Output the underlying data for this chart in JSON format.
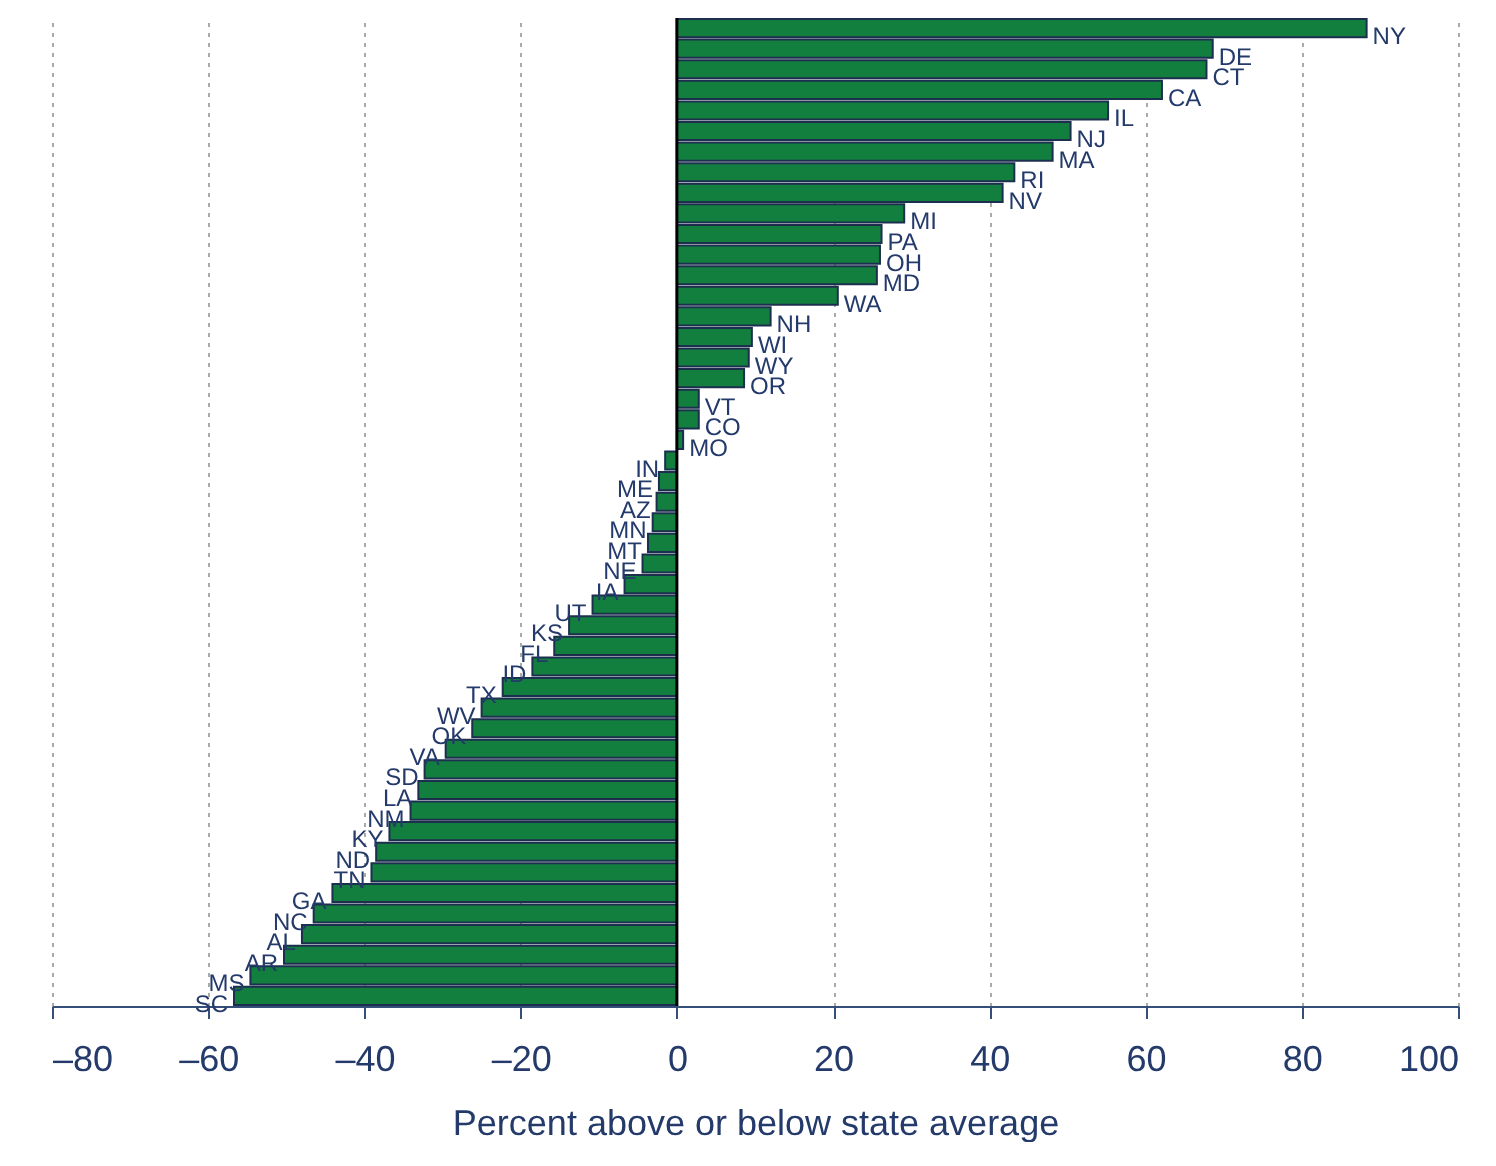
{
  "chart_data": {
    "type": "bar",
    "orientation": "horizontal",
    "xlabel": "Percent above or below state average",
    "categories": [
      "NY",
      "DE",
      "CT",
      "CA",
      "IL",
      "NJ",
      "MA",
      "RI",
      "NV",
      "MI",
      "PA",
      "OH",
      "MD",
      "WA",
      "NH",
      "WI",
      "WY",
      "OR",
      "VT",
      "CO",
      "MO",
      "IN",
      "ME",
      "AZ",
      "MN",
      "MT",
      "NE",
      "IA",
      "UT",
      "KS",
      "FL",
      "ID",
      "TX",
      "WV",
      "OK",
      "VA",
      "SD",
      "LA",
      "NM",
      "KY",
      "ND",
      "TN",
      "GA",
      "NC",
      "AL",
      "AR",
      "MS",
      "SC"
    ],
    "values": [
      88.3,
      68.6,
      67.8,
      62.1,
      55.2,
      50.4,
      48.1,
      43.2,
      41.7,
      29.1,
      26.2,
      26.0,
      25.6,
      20.6,
      12.0,
      9.6,
      9.2,
      8.6,
      2.8,
      2.8,
      0.8,
      -1.5,
      -2.3,
      -2.6,
      -3.1,
      -3.7,
      -4.4,
      -6.7,
      -10.8,
      -13.8,
      -15.7,
      -18.5,
      -22.3,
      -25.0,
      -26.2,
      -29.6,
      -32.3,
      -33.1,
      -34.1,
      -36.8,
      -38.5,
      -39.1,
      -44.1,
      -46.5,
      -48.0,
      -50.3,
      -54.6,
      -56.7
    ],
    "color": "#127f3f",
    "xlim": [
      -80,
      100
    ],
    "xticks": [
      {
        "value": -80,
        "label": "–80"
      },
      {
        "value": -60,
        "label": "–60"
      },
      {
        "value": -40,
        "label": "–40"
      },
      {
        "value": -20,
        "label": "–20"
      },
      0,
      20,
      40,
      60,
      80,
      100
    ],
    "grid": "x",
    "tick_labels": "x",
    "ref_lines": [
      {
        "axis": "x",
        "value": 0,
        "color": "#000000"
      }
    ]
  }
}
